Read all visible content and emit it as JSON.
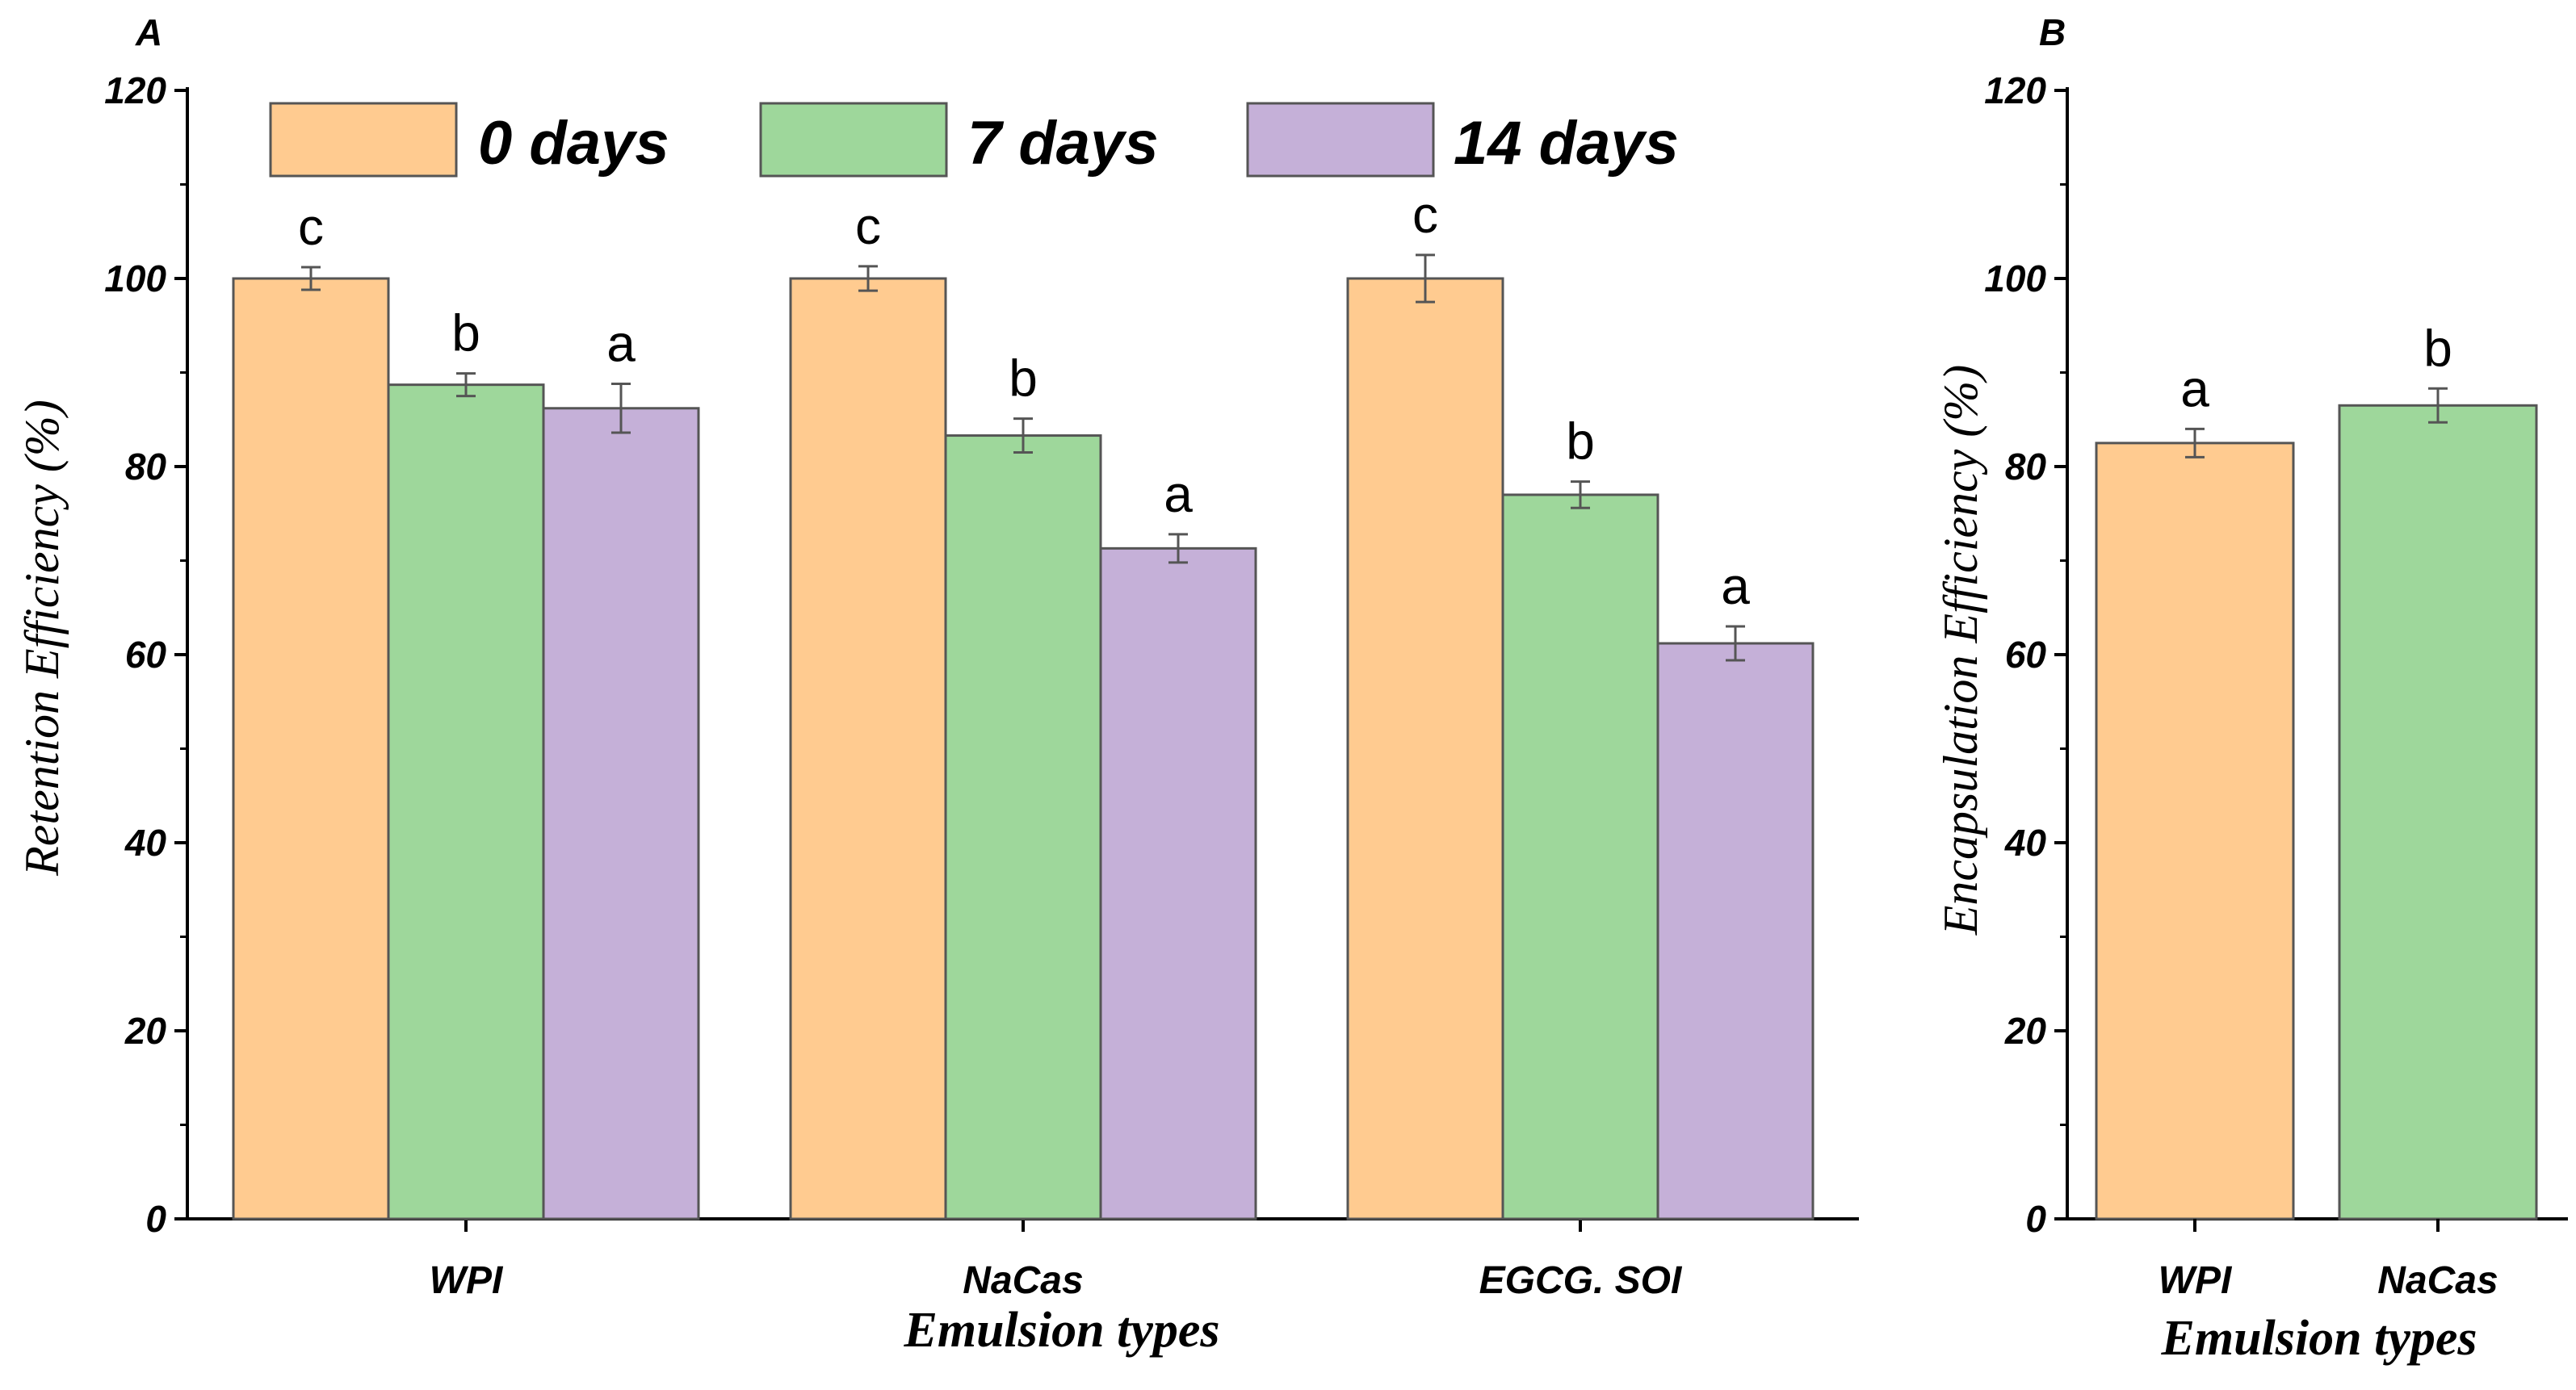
{
  "colors": {
    "days0": "#ffcb90",
    "days7": "#9ed79b",
    "days14": "#c5b0d8",
    "edge": "#555555",
    "axis": "#000000",
    "errorbar": "#555555"
  },
  "chart_data": [
    {
      "type": "bar",
      "panel": "A",
      "categories": [
        "WPI",
        "NaCas",
        "EGCG. SOI"
      ],
      "series": [
        {
          "name": "0 days",
          "color_key": "days0",
          "values": [
            100,
            100,
            100
          ],
          "errors": [
            1.2,
            1.3,
            2.5
          ],
          "labels": [
            "c",
            "c",
            "c"
          ]
        },
        {
          "name": "7 days",
          "color_key": "days7",
          "values": [
            88.7,
            83.3,
            77.0
          ],
          "errors": [
            1.2,
            1.8,
            1.4
          ],
          "labels": [
            "b",
            "b",
            "b"
          ]
        },
        {
          "name": "14 days",
          "color_key": "days14",
          "values": [
            86.2,
            71.3,
            61.2
          ],
          "errors": [
            2.6,
            1.5,
            1.8
          ],
          "labels": [
            "a",
            "a",
            "a"
          ]
        }
      ],
      "xlabel": "Emulsion types",
      "ylabel": "Retention Efficiency (%)",
      "ylim": [
        0,
        120
      ],
      "yticks": [
        "0",
        "20",
        "40",
        "60",
        "80",
        "100",
        "120"
      ],
      "legend": [
        "0 days",
        "7 days",
        "14 days"
      ],
      "legend_position": "top"
    },
    {
      "type": "bar",
      "panel": "B",
      "categories": [
        "WPI",
        "NaCas"
      ],
      "values": [
        82.5,
        86.5
      ],
      "errors": [
        1.5,
        1.8
      ],
      "labels": [
        "a",
        "b"
      ],
      "color_keys": [
        "days0",
        "days7"
      ],
      "xlabel": "Emulsion types",
      "ylabel": "Encapsulation Efficiency (%)",
      "ylim": [
        0,
        120
      ],
      "yticks": [
        "0",
        "20",
        "40",
        "60",
        "80",
        "100",
        "120"
      ]
    }
  ]
}
